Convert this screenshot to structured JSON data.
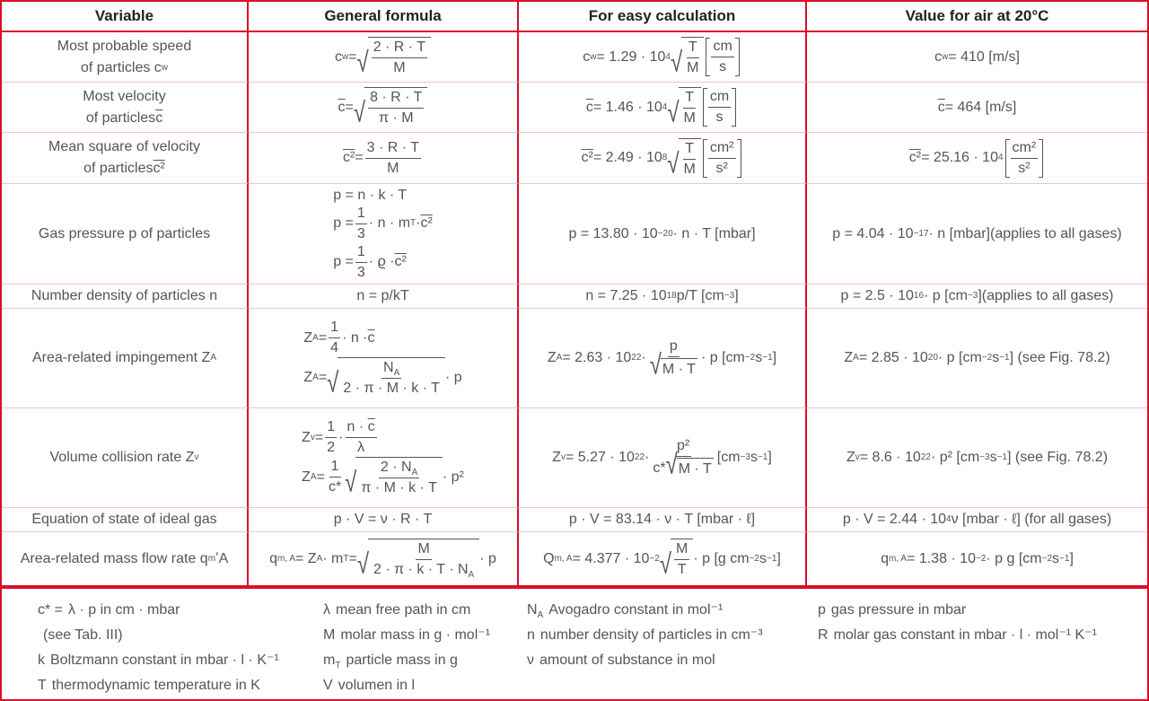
{
  "colors": {
    "border": "#d8102a",
    "row_divider": "#f3c3c9",
    "text": "#555555",
    "header_text": "#222222"
  },
  "headers": [
    "Variable",
    "General formula",
    "For easy calculation",
    "Value for air at 20°C"
  ],
  "rows": [
    {
      "name": "most-probable-speed",
      "var": [
        "Most probable speed",
        {
          "t": "br"
        },
        "of particles c",
        {
          "t": "sub",
          "v": "w"
        }
      ],
      "gen": [
        "c",
        {
          "t": "sub",
          "v": "w"
        },
        " = ",
        {
          "t": "sqrt",
          "v": [
            {
              "t": "frac",
              "n": [
                "2 · R · T"
              ],
              "d": [
                "M"
              ]
            }
          ]
        }
      ],
      "easy": [
        "c",
        {
          "t": "sub",
          "v": "w"
        },
        " = 1.29 · 10",
        {
          "t": "sup",
          "v": "4"
        },
        {
          "t": "sqrt",
          "v": [
            {
              "t": "frac",
              "n": [
                "T"
              ],
              "d": [
                "M"
              ]
            }
          ]
        },
        " ",
        {
          "t": "brk",
          "v": [
            {
              "t": "frac",
              "n": [
                "cm"
              ],
              "d": [
                "s"
              ]
            }
          ]
        }
      ],
      "air": [
        "c",
        {
          "t": "sub",
          "v": "w"
        },
        " = 410 [m/s]"
      ]
    },
    {
      "name": "most-velocity",
      "var": [
        "Most velocity",
        {
          "t": "br"
        },
        "of particles ",
        {
          "t": "bar",
          "v": "c"
        }
      ],
      "gen": [
        {
          "t": "bar",
          "v": "c"
        },
        " = ",
        {
          "t": "sqrt",
          "v": [
            {
              "t": "frac",
              "n": [
                "8 · R · T"
              ],
              "d": [
                "π · M"
              ]
            }
          ]
        }
      ],
      "easy": [
        {
          "t": "bar",
          "v": "c"
        },
        " = 1.46 · 10",
        {
          "t": "sup",
          "v": "4"
        },
        " ",
        {
          "t": "sqrt",
          "v": [
            {
              "t": "frac",
              "n": [
                "T"
              ],
              "d": [
                "M"
              ]
            }
          ]
        },
        " ",
        {
          "t": "brk",
          "v": [
            {
              "t": "frac",
              "n": [
                "cm"
              ],
              "d": [
                "s"
              ]
            }
          ]
        }
      ],
      "air": [
        {
          "t": "bar",
          "v": "c"
        },
        " = 464 [m/s]"
      ]
    },
    {
      "name": "mean-square-velocity",
      "var": [
        "Mean square of velocity",
        {
          "t": "br"
        },
        "of particles ",
        {
          "t": "bar",
          "v": "c²"
        }
      ],
      "gen": [
        {
          "t": "bar",
          "v": "c²"
        },
        " = ",
        {
          "t": "frac",
          "n": [
            "3 · R · T"
          ],
          "d": [
            "M"
          ]
        }
      ],
      "easy": [
        {
          "t": "bar",
          "v": "c²"
        },
        " = 2.49 · 10",
        {
          "t": "sup",
          "v": "8"
        },
        {
          "t": "sqrt",
          "v": [
            {
              "t": "frac",
              "n": [
                "T"
              ],
              "d": [
                "M"
              ]
            }
          ]
        },
        " ",
        {
          "t": "brk",
          "v": [
            {
              "t": "frac",
              "n": [
                "cm²"
              ],
              "d": [
                "s²"
              ]
            }
          ]
        }
      ],
      "air": [
        {
          "t": "bar",
          "v": "c²"
        },
        " = 25.16 · 10",
        {
          "t": "sup",
          "v": "4"
        },
        {
          "t": "brk",
          "v": [
            {
              "t": "frac",
              "n": [
                "cm²"
              ],
              "d": [
                "s²"
              ]
            }
          ]
        }
      ]
    },
    {
      "name": "gas-pressure",
      "var": [
        "Gas pressure p of particles"
      ],
      "gen": [
        "p = n · k · T",
        {
          "t": "br"
        },
        "p = ",
        {
          "t": "frac",
          "n": [
            "1"
          ],
          "d": [
            "3"
          ]
        },
        " · n · m",
        {
          "t": "sub",
          "v": "T"
        },
        " · ",
        {
          "t": "bar",
          "v": "c²"
        },
        {
          "t": "br"
        },
        "p = ",
        {
          "t": "frac",
          "n": [
            "1"
          ],
          "d": [
            "3"
          ]
        },
        " · ϱ · ",
        {
          "t": "bar",
          "v": "c²"
        }
      ],
      "easy": [
        "p = 13.80 · 10",
        {
          "t": "sup",
          "v": "−20"
        },
        " · n · T [mbar]"
      ],
      "air": [
        "p = 4.04 · 10",
        {
          "t": "sup",
          "v": "−17"
        },
        " · n [mbar](applies to all gases)"
      ]
    },
    {
      "name": "number-density",
      "var": [
        "Number density of particles n"
      ],
      "gen": [
        "n = p/kT"
      ],
      "easy": [
        "n = 7.25 · 10",
        {
          "t": "sup",
          "v": "18"
        },
        " p/T [cm",
        {
          "t": "sup",
          "v": "−3"
        },
        "]"
      ],
      "air": [
        "p = 2.5 · 10",
        {
          "t": "sup",
          "v": "16"
        },
        " · p [cm",
        {
          "t": "sup",
          "v": "−3"
        },
        "](applies to all gases)"
      ]
    },
    {
      "name": "area-related-impingement",
      "var": [
        "Area-related impingement Z",
        {
          "t": "sub",
          "v": "A"
        }
      ],
      "gen": [
        "Z",
        {
          "t": "sub",
          "v": "A"
        },
        " = ",
        {
          "t": "frac",
          "n": [
            "1"
          ],
          "d": [
            "4"
          ]
        },
        " · n · ",
        {
          "t": "bar",
          "v": "c"
        },
        {
          "t": "br"
        },
        "Z",
        {
          "t": "sub",
          "v": "A"
        },
        " = ",
        {
          "t": "sqrt",
          "v": [
            {
              "t": "frac",
              "n": [
                "N",
                {
                  "t": "sub",
                  "v": "A"
                }
              ],
              "d": [
                "2 · π · M · k · T"
              ]
            }
          ]
        },
        " · p"
      ],
      "easy": [
        "Z",
        {
          "t": "sub",
          "v": "A"
        },
        " = 2.63 · 10",
        {
          "t": "sup",
          "v": "22"
        },
        " · ",
        {
          "t": "frac",
          "n": [
            "p"
          ],
          "d": [
            {
              "t": "sqrt",
              "v": [
                "M · T"
              ]
            }
          ]
        },
        " · p [cm",
        {
          "t": "sup",
          "v": "−2"
        },
        " s",
        {
          "t": "sup",
          "v": "−1"
        },
        "]"
      ],
      "air": [
        "Z",
        {
          "t": "sub",
          "v": "A"
        },
        " = 2.85 · 10",
        {
          "t": "sup",
          "v": "20"
        },
        " · p [cm",
        {
          "t": "sup",
          "v": "−2"
        },
        " s",
        {
          "t": "sup",
          "v": "−1"
        },
        "] (see Fig. 78.2)"
      ]
    },
    {
      "name": "volume-collision-rate",
      "var": [
        "Volume collision rate Z",
        {
          "t": "sub",
          "v": "v"
        }
      ],
      "gen": [
        "Z",
        {
          "t": "sub",
          "v": "v"
        },
        " = ",
        {
          "t": "frac",
          "n": [
            "1"
          ],
          "d": [
            "2"
          ]
        },
        " · ",
        {
          "t": "frac",
          "n": [
            "n · ",
            {
              "t": "bar",
              "v": "c"
            }
          ],
          "d": [
            "λ"
          ]
        },
        {
          "t": "br"
        },
        "Z",
        {
          "t": "sub",
          "v": "A"
        },
        " = ",
        {
          "t": "frac",
          "n": [
            "1"
          ],
          "d": [
            "c*"
          ]
        },
        {
          "t": "sqrt",
          "v": [
            {
              "t": "frac",
              "n": [
                "2 · N",
                {
                  "t": "sub",
                  "v": "A"
                }
              ],
              "d": [
                "π · M · k · T"
              ]
            }
          ]
        },
        " · p²"
      ],
      "easy": [
        "Z",
        {
          "t": "sub",
          "v": "v"
        },
        " = 5.27 · 10",
        {
          "t": "sup",
          "v": "22"
        },
        " · ",
        {
          "t": "frac",
          "n": [
            "p²"
          ],
          "d": [
            "c*",
            {
              "t": "sqrt",
              "v": [
                "M · T"
              ]
            }
          ]
        },
        " [cm",
        {
          "t": "sup",
          "v": "−3"
        },
        " s",
        {
          "t": "sup",
          "v": "−1"
        },
        "]"
      ],
      "air": [
        "Z",
        {
          "t": "sub",
          "v": "v"
        },
        " = 8.6 · 10",
        {
          "t": "sup",
          "v": "22"
        },
        " · p² [cm",
        {
          "t": "sup",
          "v": "−3"
        },
        " s",
        {
          "t": "sup",
          "v": "−1"
        },
        "] (see Fig. 78.2)"
      ]
    },
    {
      "name": "equation-of-state",
      "var": [
        "Equation of state of ideal gas"
      ],
      "gen": [
        "p · V = ν · R · T"
      ],
      "easy": [
        "p · V = 83.14 · ν · T [mbar · ℓ]"
      ],
      "air": [
        "p · V = 2.44 · 10",
        {
          "t": "sup",
          "v": "4"
        },
        "ν [mbar · ℓ] (for all gases)"
      ]
    },
    {
      "name": "area-related-mass-flow-rate",
      "var": [
        "Area-related mass flow rate q",
        {
          "t": "sub",
          "v": "m"
        },
        "ʼA"
      ],
      "gen": [
        "q",
        {
          "t": "sub",
          "v": "m, A"
        },
        " = Z",
        {
          "t": "sub",
          "v": "A"
        },
        " · m",
        {
          "t": "sub",
          "v": "T"
        },
        " = ",
        {
          "t": "sqrt",
          "v": [
            {
              "t": "frac",
              "n": [
                "M"
              ],
              "d": [
                "2 · π · k · T · N",
                {
                  "t": "sub",
                  "v": "A"
                }
              ]
            }
          ]
        },
        " · p"
      ],
      "easy": [
        "Q",
        {
          "t": "sub",
          "v": "m, A"
        },
        " = 4.377 · 10",
        {
          "t": "sup",
          "v": "−2"
        },
        {
          "t": "sqrt",
          "v": [
            {
              "t": "frac",
              "n": [
                "M"
              ],
              "d": [
                "T"
              ]
            }
          ]
        },
        " · p [g cm",
        {
          "t": "sup",
          "v": "−2"
        },
        " s",
        {
          "t": "sup",
          "v": "−1"
        },
        "]"
      ],
      "air": [
        "q",
        {
          "t": "sub",
          "v": "m, A"
        },
        " = 1.38 · 10",
        {
          "t": "sup",
          "v": "−2"
        },
        " · p g [cm",
        {
          "t": "sup",
          "v": "−2"
        },
        " s",
        {
          "t": "sup",
          "v": "−1"
        },
        "]"
      ]
    }
  ],
  "legend": [
    [
      {
        "sym": [
          "c* ="
        ],
        "text": "λ · p in cm · mbar"
      },
      {
        "sym": [],
        "text": "(see Tab. III)"
      },
      {
        "sym": [
          "k"
        ],
        "text": "Boltzmann constant in mbar · l · K⁻¹"
      },
      {
        "sym": [
          "T"
        ],
        "text": "thermodynamic temperature in K"
      }
    ],
    [
      {
        "sym": [
          "λ"
        ],
        "text": "mean free path in cm"
      },
      {
        "sym": [
          "M"
        ],
        "text": "molar mass in g · mol⁻¹"
      },
      {
        "sym": [
          "m",
          {
            "t": "sub",
            "v": "T"
          }
        ],
        "text": "particle mass in g"
      },
      {
        "sym": [
          "V"
        ],
        "text": "volumen in l"
      }
    ],
    [
      {
        "sym": [
          "N",
          {
            "t": "sub",
            "v": "A"
          }
        ],
        "text": "Avogadro constant in mol⁻¹"
      },
      {
        "sym": [
          "n"
        ],
        "text": "number density of particles in cm⁻³"
      },
      {
        "sym": [
          "ν"
        ],
        "text": "amount of substance in mol"
      }
    ],
    [
      {
        "sym": [
          "p"
        ],
        "text": "gas pressure in mbar"
      },
      {
        "sym": [
          "R"
        ],
        "text": "molar gas constant in mbar · l · mol⁻¹ K⁻¹"
      }
    ]
  ]
}
